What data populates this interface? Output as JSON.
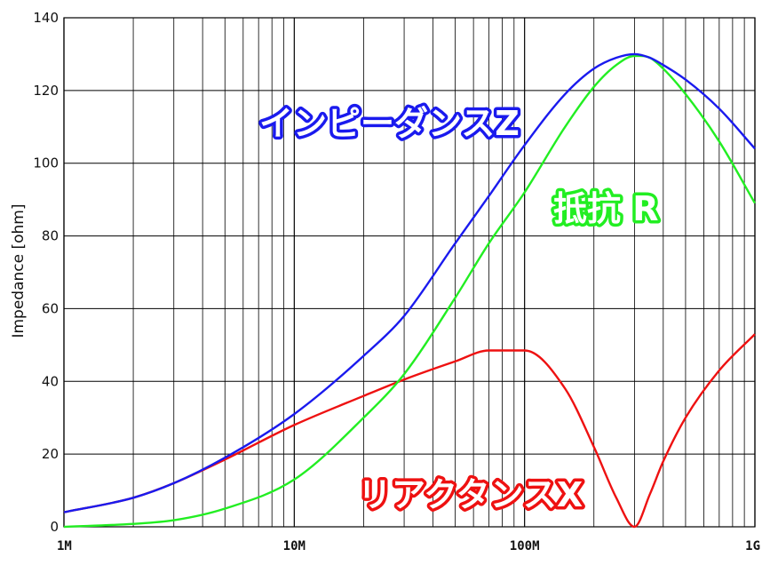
{
  "chart_data": {
    "type": "line",
    "title": "",
    "xlabel": "",
    "ylabel": "Impedance [ohm]",
    "xscale": "log",
    "xlim": [
      1000000,
      1000000000
    ],
    "ylim": [
      0,
      140
    ],
    "grid": true,
    "legend": "none",
    "x_ticks": [
      {
        "value": 1000000,
        "label": "1M"
      },
      {
        "value": 10000000,
        "label": "10M"
      },
      {
        "value": 100000000,
        "label": "100M"
      },
      {
        "value": 1000000000,
        "label": "1G"
      }
    ],
    "y_ticks": [
      0,
      20,
      40,
      60,
      80,
      100,
      120,
      140
    ],
    "x": [
      1000000,
      2000000,
      3000000,
      5000000,
      10000000,
      20000000,
      30000000,
      50000000,
      70000000,
      100000000,
      150000000,
      200000000,
      250000000,
      300000000,
      350000000,
      400000000,
      500000000,
      700000000,
      1000000000
    ],
    "series": [
      {
        "name": "インピーダンスZ",
        "color": "#1a1aee",
        "values": [
          4,
          8,
          12,
          19,
          31,
          47,
          58,
          78,
          91,
          105,
          119,
          126,
          129,
          130,
          129,
          127,
          123,
          115,
          104
        ]
      },
      {
        "name": "抵抗R",
        "color": "#22ee22",
        "values": [
          0,
          0.8,
          1.8,
          5,
          13,
          30,
          42,
          63,
          78,
          92,
          110,
          121,
          127,
          129.5,
          129,
          126,
          119,
          106,
          89
        ]
      },
      {
        "name": "リアクタンスX",
        "color": "#ee1111",
        "values": [
          4,
          8,
          12,
          18.5,
          28,
          36,
          40.5,
          45.5,
          48.5,
          48.5,
          38,
          22,
          8,
          0,
          9,
          18,
          30,
          43,
          53
        ]
      }
    ],
    "annotations": [
      {
        "text": "インピーダンスZ",
        "series": "インピーダンスZ"
      },
      {
        "text": "抵抗 R",
        "series": "抵抗R"
      },
      {
        "text": "リアクタンスX",
        "series": "リアクタンスX"
      }
    ]
  }
}
